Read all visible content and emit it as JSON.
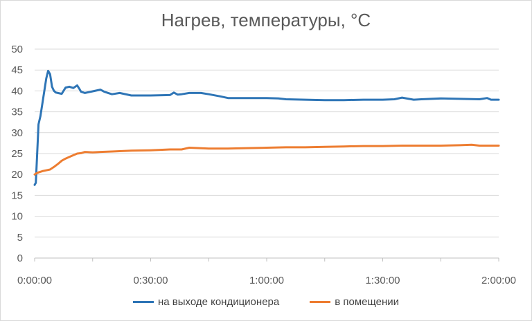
{
  "chart_data": {
    "type": "line",
    "title": "Нагрев, температуры, °С",
    "xlabel": "",
    "ylabel": "",
    "ylim": [
      0,
      50
    ],
    "y_ticks": [
      "0",
      "5",
      "10",
      "15",
      "20",
      "25",
      "30",
      "35",
      "40",
      "45",
      "50"
    ],
    "xlim": [
      0,
      120
    ],
    "x_unit": "minutes",
    "x_ticks": [
      {
        "value": 0,
        "label": "0:00:00"
      },
      {
        "value": 30,
        "label": "0:30:00"
      },
      {
        "value": 60,
        "label": "1:00:00"
      },
      {
        "value": 90,
        "label": "1:30:00"
      },
      {
        "value": 120,
        "label": "2:00:00"
      }
    ],
    "grid": true,
    "legend_position": "bottom",
    "series": [
      {
        "name": "на выходе кондиционера",
        "color": "#2e75b6",
        "x": [
          0,
          0.3,
          0.6,
          1.0,
          1.5,
          2.0,
          2.5,
          3.0,
          3.5,
          4.0,
          4.5,
          5.0,
          5.5,
          6.0,
          7.0,
          8.0,
          9.0,
          10.0,
          11.0,
          11.5,
          12.0,
          13.0,
          14.0,
          15.0,
          17.0,
          18.0,
          19.0,
          20.0,
          22.0,
          25.0,
          30.0,
          35.0,
          36.0,
          37.0,
          38.0,
          40.0,
          43.0,
          45.0,
          48.0,
          50.0,
          55.0,
          60.0,
          63.0,
          65.0,
          70.0,
          75.0,
          80.0,
          85.0,
          90.0,
          93.0,
          95.0,
          98.0,
          100.0,
          105.0,
          110.0,
          115.0,
          117.0,
          118.0,
          120.0
        ],
        "y": [
          17.5,
          18,
          24,
          32,
          34,
          37,
          40,
          43,
          44.8,
          44,
          41,
          40,
          39.6,
          39.5,
          39.3,
          40.8,
          41,
          40.7,
          41.3,
          40.6,
          39.8,
          39.5,
          39.7,
          39.9,
          40.3,
          39.8,
          39.5,
          39.2,
          39.5,
          38.9,
          38.9,
          39.0,
          39.6,
          39.1,
          39.2,
          39.5,
          39.5,
          39.2,
          38.7,
          38.3,
          38.3,
          38.3,
          38.2,
          38.0,
          37.9,
          37.8,
          37.8,
          37.9,
          37.9,
          38.0,
          38.4,
          37.9,
          38.0,
          38.2,
          38.1,
          38.0,
          38.3,
          37.9,
          37.9
        ]
      },
      {
        "name": "в помещении",
        "color": "#ed7d31",
        "x": [
          0,
          0.5,
          1.0,
          2.0,
          3.0,
          4.0,
          5.0,
          6.0,
          7.0,
          8.0,
          9.0,
          10.0,
          11.0,
          12.0,
          13.0,
          15.0,
          17.0,
          20.0,
          25.0,
          30.0,
          35.0,
          38.0,
          40.0,
          45.0,
          50.0,
          55.0,
          60.0,
          65.0,
          70.0,
          75.0,
          80.0,
          85.0,
          90.0,
          95.0,
          100.0,
          105.0,
          110.0,
          113.0,
          115.0,
          120.0
        ],
        "y": [
          20.0,
          20.3,
          20.5,
          20.8,
          21.0,
          21.2,
          21.8,
          22.5,
          23.3,
          23.8,
          24.2,
          24.6,
          25.0,
          25.1,
          25.4,
          25.3,
          25.4,
          25.5,
          25.7,
          25.8,
          26.0,
          26.0,
          26.4,
          26.2,
          26.2,
          26.3,
          26.4,
          26.5,
          26.5,
          26.6,
          26.7,
          26.8,
          26.8,
          26.9,
          26.9,
          26.9,
          27.0,
          27.1,
          26.9,
          26.9
        ]
      }
    ]
  }
}
